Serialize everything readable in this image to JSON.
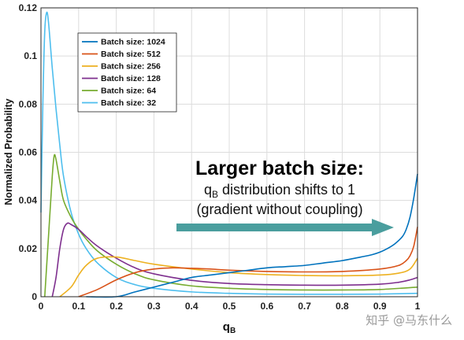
{
  "chart_data": {
    "type": "line",
    "title": "",
    "xlabel": "q",
    "xlabel_sub": "B",
    "ylabel": "Normalized Probability",
    "xlim": [
      0,
      1
    ],
    "ylim": [
      0,
      0.12
    ],
    "xticks": [
      "0",
      "0.1",
      "0.2",
      "0.3",
      "0.4",
      "0.5",
      "0.6",
      "0.7",
      "0.8",
      "0.9",
      "1"
    ],
    "yticks": [
      "0",
      "0.02",
      "0.04",
      "0.06",
      "0.08",
      "0.1",
      "0.12"
    ],
    "grid": true,
    "legend_position": "top-left",
    "series": [
      {
        "name": "Batch size: 1024",
        "color": "#0072BD",
        "x": [
          0.12,
          0.2,
          0.25,
          0.3,
          0.35,
          0.4,
          0.45,
          0.5,
          0.55,
          0.6,
          0.65,
          0.7,
          0.75,
          0.8,
          0.85,
          0.88,
          0.9,
          0.92,
          0.94,
          0.96,
          0.97,
          0.98,
          0.99,
          1.0
        ],
        "y": [
          0,
          0,
          0.002,
          0.004,
          0.006,
          0.008,
          0.009,
          0.01,
          0.011,
          0.012,
          0.0125,
          0.013,
          0.014,
          0.015,
          0.0165,
          0.0175,
          0.0185,
          0.02,
          0.022,
          0.025,
          0.028,
          0.033,
          0.041,
          0.051
        ]
      },
      {
        "name": "Batch size: 512",
        "color": "#D95319",
        "x": [
          0.1,
          0.15,
          0.2,
          0.25,
          0.3,
          0.35,
          0.4,
          0.45,
          0.5,
          0.6,
          0.7,
          0.8,
          0.9,
          0.95,
          0.97,
          0.98,
          0.99,
          1.0
        ],
        "y": [
          0,
          0.003,
          0.007,
          0.01,
          0.0115,
          0.012,
          0.0118,
          0.0115,
          0.011,
          0.0105,
          0.0103,
          0.0105,
          0.0115,
          0.013,
          0.015,
          0.017,
          0.021,
          0.029
        ]
      },
      {
        "name": "Batch size: 256",
        "color": "#EDB120",
        "x": [
          0.05,
          0.08,
          0.1,
          0.12,
          0.15,
          0.2,
          0.25,
          0.3,
          0.4,
          0.5,
          0.6,
          0.7,
          0.8,
          0.9,
          0.95,
          0.98,
          1.0
        ],
        "y": [
          0,
          0.004,
          0.009,
          0.013,
          0.016,
          0.0165,
          0.015,
          0.0135,
          0.0115,
          0.01,
          0.0092,
          0.0088,
          0.0087,
          0.009,
          0.0098,
          0.0115,
          0.016
        ]
      },
      {
        "name": "Batch size: 128",
        "color": "#7E2F8E",
        "x": [
          0.03,
          0.04,
          0.05,
          0.06,
          0.07,
          0.08,
          0.1,
          0.12,
          0.15,
          0.2,
          0.25,
          0.3,
          0.4,
          0.5,
          0.6,
          0.7,
          0.8,
          0.9,
          0.95,
          0.98,
          1.0
        ],
        "y": [
          0,
          0.008,
          0.02,
          0.028,
          0.0305,
          0.03,
          0.028,
          0.025,
          0.021,
          0.016,
          0.012,
          0.0095,
          0.0068,
          0.0055,
          0.005,
          0.0048,
          0.0048,
          0.0052,
          0.006,
          0.007,
          0.008
        ]
      },
      {
        "name": "Batch size: 64",
        "color": "#77AC30",
        "x": [
          0.01,
          0.02,
          0.03,
          0.035,
          0.04,
          0.05,
          0.06,
          0.08,
          0.1,
          0.12,
          0.15,
          0.2,
          0.25,
          0.3,
          0.4,
          0.5,
          0.6,
          0.7,
          0.8,
          0.9,
          1.0
        ],
        "y": [
          0,
          0.025,
          0.05,
          0.0585,
          0.057,
          0.048,
          0.04,
          0.033,
          0.028,
          0.024,
          0.019,
          0.0135,
          0.0095,
          0.007,
          0.0045,
          0.0035,
          0.003,
          0.0028,
          0.0028,
          0.003,
          0.004
        ]
      },
      {
        "name": "Batch size: 32",
        "color": "#4DBEEE",
        "x": [
          0.0,
          0.005,
          0.01,
          0.015,
          0.02,
          0.03,
          0.04,
          0.05,
          0.06,
          0.08,
          0.1,
          0.12,
          0.15,
          0.2,
          0.25,
          0.3,
          0.4,
          0.5,
          0.6,
          0.7,
          0.8,
          0.9,
          1.0
        ],
        "y": [
          0.035,
          0.08,
          0.11,
          0.118,
          0.114,
          0.095,
          0.078,
          0.063,
          0.05,
          0.035,
          0.026,
          0.02,
          0.014,
          0.008,
          0.005,
          0.0035,
          0.002,
          0.0014,
          0.0011,
          0.001,
          0.001,
          0.0011,
          0.0014
        ]
      }
    ]
  },
  "annotation": {
    "title": "Larger batch size:",
    "line1_q": "q",
    "line1_sub": "B",
    "line1_rest": " distribution shifts to 1",
    "line2": "(gradient without coupling)",
    "arrow_color": "#4A9E9E"
  },
  "watermark": "知乎 @马东什么"
}
